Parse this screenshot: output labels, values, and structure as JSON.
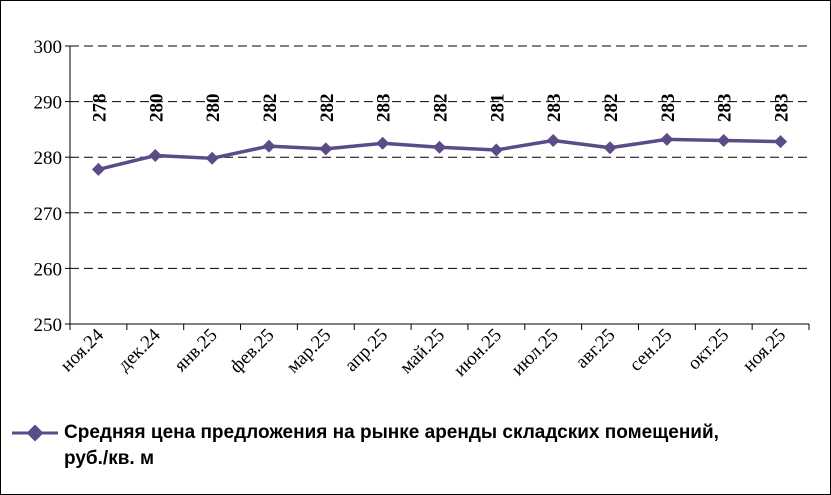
{
  "chart_data": {
    "type": "line",
    "categories": [
      "ноя.24",
      "дек.24",
      "янв.25",
      "фев.25",
      "мар.25",
      "апр.25",
      "май.25",
      "июн.25",
      "июл.25",
      "авг.25",
      "сен.25",
      "окт.25",
      "ноя.25"
    ],
    "series": [
      {
        "name": "Средняя цена предложения на рынке аренды складских помещений,\nруб./кв. м",
        "values": [
          277.8,
          280.3,
          279.8,
          282.0,
          281.5,
          282.5,
          281.8,
          281.3,
          283.0,
          281.7,
          283.2,
          283.0,
          282.8
        ],
        "data_labels": [
          "278",
          "280",
          "280",
          "282",
          "282",
          "283",
          "282",
          "281",
          "283",
          "282",
          "283",
          "283",
          "283"
        ]
      }
    ],
    "yticks": [
      "250",
      "260",
      "270",
      "280",
      "290",
      "300"
    ],
    "ylim": [
      250,
      300
    ],
    "grid": "horizontal dashed",
    "legend_position": "bottom",
    "colors": {
      "series": "#5b4b86",
      "grid": "#000000"
    }
  }
}
